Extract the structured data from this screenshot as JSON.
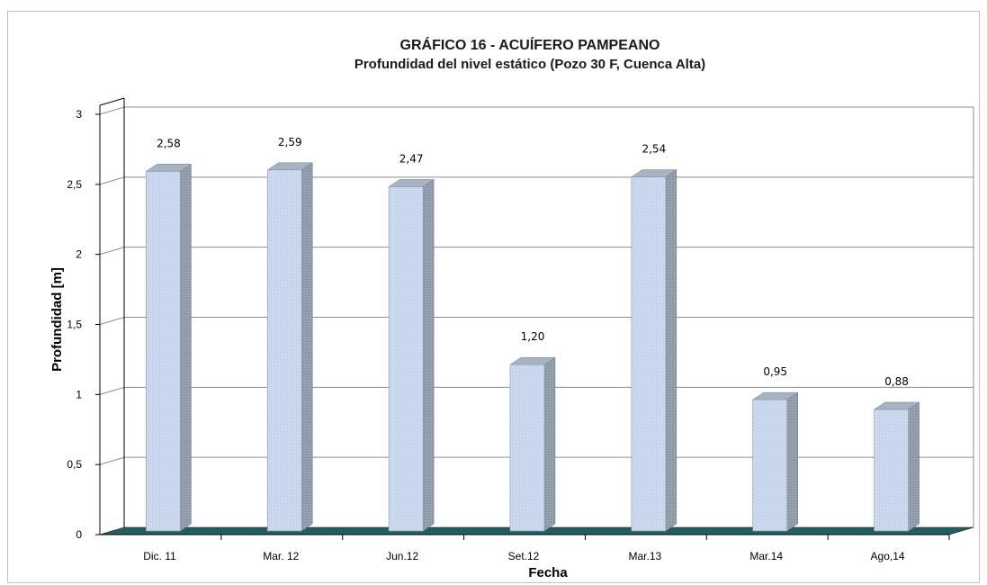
{
  "chart_data": {
    "type": "bar",
    "title": "GRÁFICO 16 - ACUÍFERO PAMPEANO",
    "subtitle": "Profundidad del nivel estático (Pozo 30 F, Cuenca Alta)",
    "xlabel": "Fecha",
    "ylabel": "Profundidad [m]",
    "categories": [
      "Dic. 11",
      "Mar. 12",
      "Jun.12",
      "Set.12",
      "Mar.13",
      "Mar.14",
      "Ago,14"
    ],
    "values": [
      2.58,
      2.59,
      2.47,
      1.2,
      2.54,
      0.95,
      0.88
    ],
    "data_labels": [
      "2,58",
      "2,59",
      "2,47",
      "1,20",
      "2,54",
      "0,95",
      "0,88"
    ],
    "ylim": [
      0,
      3
    ],
    "yticks": [
      0,
      0.5,
      1,
      1.5,
      2,
      2.5,
      3
    ],
    "ytick_labels": [
      "0",
      "0,5",
      "1",
      "1,5",
      "2",
      "2,5",
      "3"
    ],
    "grid": true,
    "legend": "none",
    "style": "3d-column",
    "colors": {
      "bar_face": "#c6d6ee",
      "bar_side": "#8e9aaa",
      "bar_top": "#a7b3c3",
      "floor": "#215f63",
      "gridline": "#8c8c8c",
      "wall": "#ffffff"
    }
  }
}
